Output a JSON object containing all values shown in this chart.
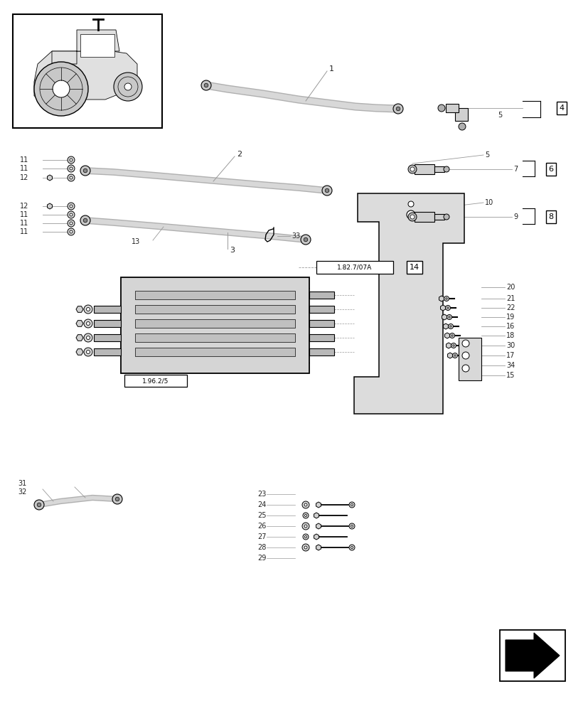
{
  "bg_color": "#ffffff",
  "line_color": "#000000",
  "gray_line": "#999999",
  "part_numbers": [
    1,
    2,
    3,
    4,
    5,
    6,
    7,
    8,
    9,
    10,
    11,
    12,
    13,
    14,
    15,
    16,
    17,
    18,
    19,
    20,
    21,
    22,
    23,
    24,
    25,
    26,
    27,
    28,
    29,
    30,
    31,
    32,
    33,
    34
  ],
  "box_labels": [
    "4",
    "6",
    "8",
    "14"
  ],
  "ref_labels": [
    "1.82.7/07A",
    "1.96.2/5"
  ]
}
